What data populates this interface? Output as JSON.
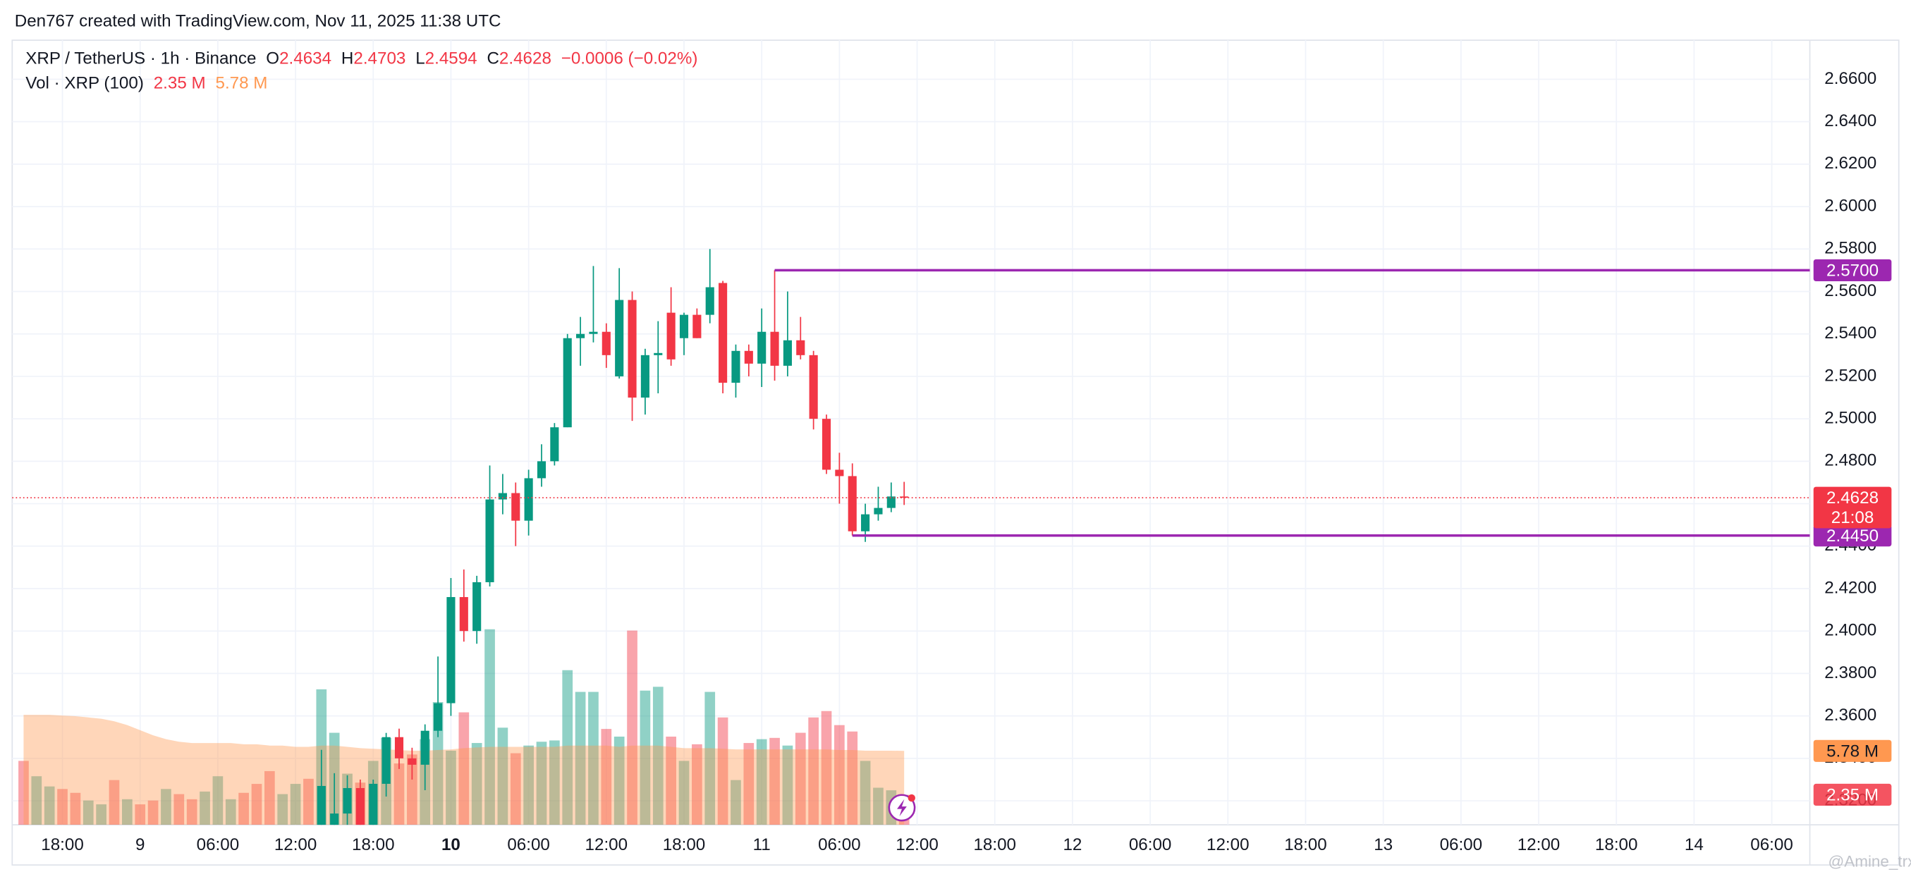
{
  "header": {
    "text": "Den767 created with TradingView.com, Nov 11, 2025 11:38 UTC"
  },
  "legend": {
    "symbol": "XRP / TetherUS · 1h · Binance",
    "o_label": "O",
    "h_label": "H",
    "l_label": "L",
    "c_label": "C",
    "change": "−0.0006 (−0.02%)",
    "vol_label": "Vol · XRP (100)"
  },
  "watermark": "@Amine_trx",
  "chart_data": {
    "type": "candlestick",
    "open": [
      null,
      null,
      null,
      null,
      null,
      null,
      null,
      null,
      null,
      null,
      null,
      null,
      null,
      null,
      null,
      null,
      null,
      null,
      null,
      null,
      null,
      null,
      null,
      2.3,
      2.308,
      2.314,
      2.326,
      2.305,
      2.328,
      2.35,
      2.34,
      2.337,
      2.353,
      2.366,
      2.416,
      2.4,
      2.423,
      2.462,
      2.465,
      2.452,
      2.472,
      2.48,
      2.496,
      2.538,
      2.54,
      2.541,
      2.52,
      2.556,
      2.51,
      2.53,
      2.55,
      2.538,
      2.549,
      2.549,
      2.564,
      2.517,
      2.532,
      2.526,
      2.541,
      2.525,
      2.537,
      2.53,
      2.5,
      2.476,
      2.473,
      2.447,
      2.455,
      2.458,
      2.4634
    ],
    "high": [
      null,
      null,
      null,
      null,
      null,
      null,
      null,
      null,
      null,
      null,
      null,
      null,
      null,
      null,
      null,
      null,
      null,
      null,
      null,
      null,
      null,
      null,
      null,
      2.344,
      2.333,
      2.332,
      2.33,
      2.33,
      2.352,
      2.354,
      2.345,
      2.356,
      2.388,
      2.425,
      2.429,
      2.426,
      2.478,
      2.474,
      2.47,
      2.476,
      2.488,
      2.498,
      2.54,
      2.548,
      2.572,
      2.545,
      2.571,
      2.56,
      2.533,
      2.546,
      2.562,
      2.55,
      2.552,
      2.58,
      2.565,
      2.535,
      2.535,
      2.552,
      2.57,
      2.56,
      2.548,
      2.532,
      2.502,
      2.484,
      2.479,
      2.46,
      2.468,
      2.47,
      2.4703
    ],
    "low": [
      null,
      null,
      null,
      null,
      null,
      null,
      null,
      null,
      null,
      null,
      null,
      null,
      null,
      null,
      null,
      null,
      null,
      null,
      null,
      null,
      null,
      null,
      null,
      2.295,
      2.3,
      2.305,
      2.3,
      2.3,
      2.322,
      2.335,
      2.33,
      2.325,
      2.35,
      2.36,
      2.395,
      2.394,
      2.421,
      2.455,
      2.44,
      2.445,
      2.468,
      2.478,
      2.496,
      2.525,
      2.536,
      2.524,
      2.519,
      2.499,
      2.502,
      2.512,
      2.525,
      2.53,
      2.538,
      2.545,
      2.512,
      2.51,
      2.52,
      2.515,
      2.518,
      2.52,
      2.528,
      2.495,
      2.474,
      2.46,
      2.445,
      2.442,
      2.452,
      2.456,
      2.4594
    ],
    "close": [
      null,
      null,
      null,
      null,
      null,
      null,
      null,
      null,
      null,
      null,
      null,
      null,
      null,
      null,
      null,
      null,
      null,
      null,
      null,
      null,
      null,
      null,
      null,
      2.327,
      2.314,
      2.326,
      2.305,
      2.328,
      2.35,
      2.34,
      2.337,
      2.353,
      2.366,
      2.416,
      2.4,
      2.423,
      2.462,
      2.465,
      2.452,
      2.472,
      2.48,
      2.496,
      2.538,
      2.54,
      2.541,
      2.53,
      2.556,
      2.51,
      2.53,
      2.531,
      2.528,
      2.549,
      2.538,
      2.562,
      2.517,
      2.532,
      2.526,
      2.541,
      2.525,
      2.537,
      2.53,
      2.5,
      2.476,
      2.473,
      2.447,
      2.455,
      2.458,
      2.4634,
      2.4628
    ],
    "volume": [
      5.0,
      3.8,
      3.0,
      2.8,
      2.5,
      1.9,
      1.6,
      3.5,
      2.0,
      1.6,
      1.9,
      2.8,
      2.4,
      2.0,
      2.6,
      3.8,
      2.0,
      2.5,
      3.2,
      4.2,
      2.4,
      3.2,
      3.6,
      10.6,
      7.2,
      4.0,
      3.3,
      5.0,
      6.8,
      4.8,
      5.5,
      6.7,
      9.6,
      5.8,
      8.8,
      6.4,
      15.3,
      7.6,
      5.6,
      6.2,
      6.5,
      6.6,
      12.1,
      10.4,
      10.4,
      7.5,
      6.9,
      15.2,
      10.5,
      10.8,
      6.9,
      5.0,
      6.3,
      10.4,
      8.4,
      3.5,
      6.4,
      6.7,
      6.8,
      6.2,
      7.2,
      8.4,
      8.9,
      7.8,
      7.3,
      5.0,
      2.9,
      2.7,
      2.35
    ],
    "volume_label": "2.35 M",
    "volume_colors": [
      "#f23645",
      "#089981",
      "#089981",
      "#f23645",
      "#f23645",
      "#089981",
      "#089981",
      "#f23645",
      "#089981",
      "#f23645",
      "#f23645",
      "#089981",
      "#f23645",
      "#f23645",
      "#089981",
      "#089981",
      "#089981",
      "#f23645",
      "#f23645",
      "#f23645",
      "#089981",
      "#089981",
      "#f23645",
      "#089981",
      "#089981",
      "#089981",
      "#f23645",
      "#089981",
      "#089981",
      "#f23645",
      "#f23645",
      "#089981",
      "#089981",
      "#089981",
      "#f23645",
      "#089981",
      "#089981",
      "#089981",
      "#f23645",
      "#089981",
      "#089981",
      "#089981",
      "#089981",
      "#089981",
      "#089981",
      "#f23645",
      "#089981",
      "#f23645",
      "#089981",
      "#089981",
      "#f23645",
      "#089981",
      "#f23645",
      "#089981",
      "#f23645",
      "#089981",
      "#f23645",
      "#089981",
      "#f23645",
      "#089981",
      "#f23645",
      "#f23645",
      "#f23645",
      "#f23645",
      "#f23645",
      "#089981",
      "#089981",
      "#089981",
      "#f23645"
    ],
    "volume_ma": [
      8.6,
      8.6,
      8.6,
      8.55,
      8.5,
      8.4,
      8.3,
      8.1,
      7.8,
      7.4,
      7.0,
      6.7,
      6.5,
      6.4,
      6.4,
      6.4,
      6.4,
      6.3,
      6.3,
      6.2,
      6.2,
      6.1,
      6.1,
      6.2,
      6.2,
      6.1,
      6.0,
      5.95,
      5.9,
      5.85,
      5.8,
      5.8,
      5.85,
      5.9,
      6.0,
      6.05,
      6.1,
      6.1,
      6.1,
      6.1,
      6.1,
      6.1,
      6.2,
      6.2,
      6.2,
      6.2,
      6.1,
      6.2,
      6.2,
      6.2,
      6.1,
      6.0,
      6.0,
      6.0,
      5.95,
      5.9,
      5.9,
      5.9,
      5.9,
      5.9,
      5.9,
      5.9,
      5.9,
      5.85,
      5.85,
      5.8,
      5.8,
      5.8,
      5.78
    ],
    "volume_ma_label": "5.78 M",
    "up_color": "#089981",
    "down_color": "#f23645",
    "ma_color": "#ff9850",
    "xlim": [
      -0.88,
      137.94
    ],
    "ylim": [
      2.3087,
      2.6784
    ],
    "vlim": [
      0,
      61.4
    ],
    "yticks": [
      {
        "value": 2.32,
        "label": "2.3200"
      },
      {
        "value": 2.34,
        "label": "2.3400"
      },
      {
        "value": 2.36,
        "label": "2.3600"
      },
      {
        "value": 2.38,
        "label": "2.3800"
      },
      {
        "value": 2.4,
        "label": "2.4000"
      },
      {
        "value": 2.42,
        "label": "2.4200"
      },
      {
        "value": 2.44,
        "label": "2.4400"
      },
      {
        "value": 2.46,
        "label": "2.4600"
      },
      {
        "value": 2.48,
        "label": "2.4800"
      },
      {
        "value": 2.5,
        "label": "2.5000"
      },
      {
        "value": 2.52,
        "label": "2.5200"
      },
      {
        "value": 2.54,
        "label": "2.5400"
      },
      {
        "value": 2.56,
        "label": "2.5600"
      },
      {
        "value": 2.58,
        "label": "2.5800"
      },
      {
        "value": 2.6,
        "label": "2.6000"
      },
      {
        "value": 2.62,
        "label": "2.6200"
      },
      {
        "value": 2.64,
        "label": "2.6400"
      },
      {
        "value": 2.66,
        "label": "2.6600"
      }
    ],
    "xticks": [
      {
        "value": 3,
        "label": "18:00"
      },
      {
        "value": 9,
        "label": "9"
      },
      {
        "value": 15,
        "label": "06:00"
      },
      {
        "value": 21,
        "label": "12:00"
      },
      {
        "value": 27,
        "label": "18:00"
      },
      {
        "value": 33,
        "label": "10",
        "bold": true
      },
      {
        "value": 39,
        "label": "06:00"
      },
      {
        "value": 45,
        "label": "12:00"
      },
      {
        "value": 51,
        "label": "18:00"
      },
      {
        "value": 57,
        "label": "11"
      },
      {
        "value": 63,
        "label": "06:00"
      },
      {
        "value": 69,
        "label": "12:00"
      },
      {
        "value": 75,
        "label": "18:00"
      },
      {
        "value": 81,
        "label": "12"
      },
      {
        "value": 87,
        "label": "06:00"
      },
      {
        "value": 93,
        "label": "12:00"
      },
      {
        "value": 99,
        "label": "18:00"
      },
      {
        "value": 105,
        "label": "13"
      },
      {
        "value": 111,
        "label": "06:00"
      },
      {
        "value": 117,
        "label": "12:00"
      },
      {
        "value": 123,
        "label": "18:00"
      },
      {
        "value": 129,
        "label": "14"
      },
      {
        "value": 135,
        "label": "06:00"
      }
    ],
    "grid": true,
    "hline_color": "#9c27b0",
    "hlines": [
      {
        "value": 2.57,
        "label": "2.5700",
        "from": 58
      },
      {
        "value": 2.445,
        "label": "2.4450",
        "from": 64
      }
    ],
    "countdown": "21:08"
  }
}
